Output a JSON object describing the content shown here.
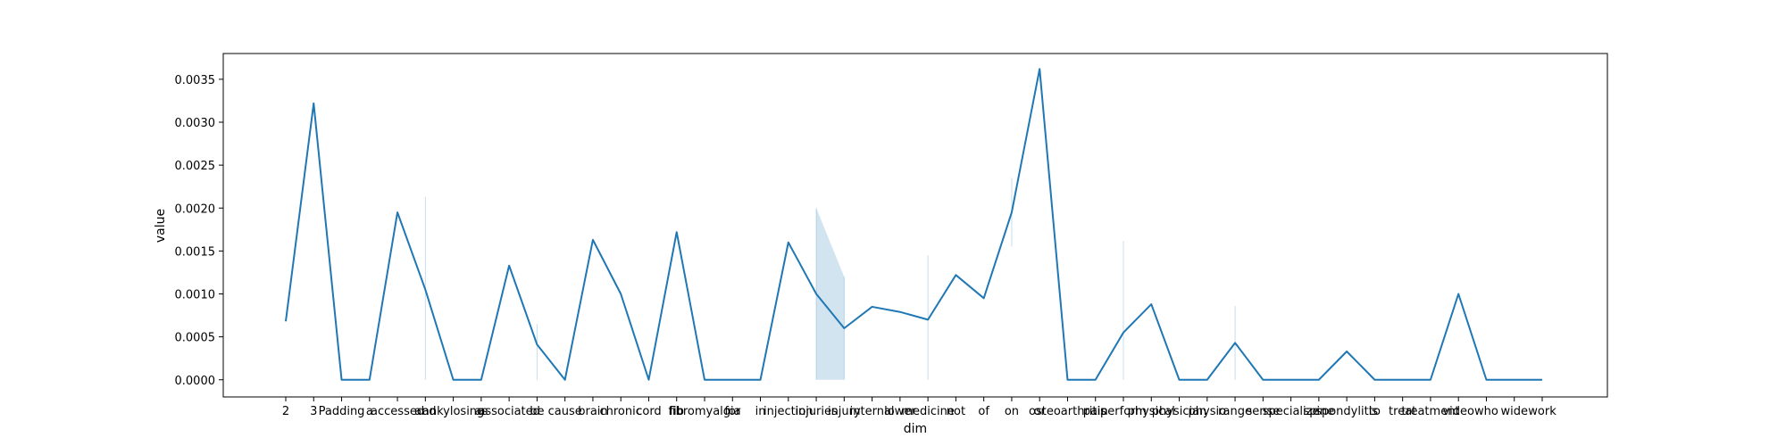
{
  "chart_data": {
    "type": "line",
    "title": "",
    "xlabel": "dim",
    "ylabel": "value",
    "ylim": [
      -0.0002,
      0.0038
    ],
    "yticks": [
      0.0,
      0.0005,
      0.001,
      0.0015,
      0.002,
      0.0025,
      0.003,
      0.0035
    ],
    "ytick_labels": [
      "0.0000",
      "0.0005",
      "0.0010",
      "0.0015",
      "0.0020",
      "0.0025",
      "0.0030",
      "0.0035"
    ],
    "grid": false,
    "legend": "none",
    "line_color": "#1f77b4",
    "band_color": "#1f77b4",
    "categories": [
      "2",
      "3",
      "Padding",
      "a",
      "accessed",
      "and",
      "ankylosing",
      "as",
      "associated",
      "be",
      "cause",
      "brain",
      "chronic",
      "cord",
      "fib",
      "fibromyalgia",
      "for",
      "in",
      "injection",
      "injuries",
      "injury",
      "internal",
      "lower",
      "medicine",
      "not",
      "of",
      "on",
      "or",
      "osteoarthritis",
      "pain",
      "perform",
      "physical",
      "physician",
      "physio",
      "range",
      "sense",
      "specialize",
      "spine",
      "spondylitis",
      "to",
      "treat",
      "treatment",
      "video",
      "who",
      "wide",
      "work"
    ],
    "values": [
      0.00068,
      0.00322,
      0.0,
      0.0,
      0.00195,
      0.00105,
      0.0,
      0.0,
      0.00133,
      0.00041,
      0.0,
      0.00163,
      0.001,
      0.0,
      0.00172,
      0.0,
      0.0,
      0.0,
      0.0016,
      0.001,
      0.0006,
      0.00085,
      0.00079,
      0.0007,
      0.00122,
      0.00095,
      0.00195,
      0.00362,
      0.0,
      0.0,
      0.00055,
      0.00088,
      0.0,
      0.0,
      0.00043,
      0.0,
      0.0,
      0.0,
      0.00033,
      0.0,
      0.0,
      0.0,
      0.001,
      0.0,
      0.0,
      0.0
    ],
    "ci_lower": [
      0.00068,
      0.00322,
      0.0,
      0.0,
      0.00195,
      0.0,
      0.0,
      0.0,
      0.00133,
      0.0,
      0.0,
      0.00163,
      0.001,
      0.0,
      0.00172,
      0.0,
      0.0,
      0.0,
      0.0016,
      0.0,
      0.0,
      0.00085,
      0.00079,
      0.0,
      0.00122,
      0.00095,
      0.00155,
      0.00362,
      0.0,
      0.0,
      0.0,
      0.00088,
      0.0,
      0.0,
      0.0,
      0.0,
      0.0,
      0.0,
      0.00033,
      0.0,
      0.0,
      0.0,
      0.001,
      0.0,
      0.0,
      0.0
    ],
    "ci_upper": [
      0.00068,
      0.00322,
      0.0,
      0.0,
      0.00195,
      0.00213,
      0.0,
      0.0,
      0.00133,
      0.00065,
      0.0,
      0.00163,
      0.001,
      0.0,
      0.00172,
      0.0,
      0.0,
      0.0,
      0.0016,
      0.002,
      0.0012,
      0.00085,
      0.00079,
      0.00145,
      0.00122,
      0.00095,
      0.00235,
      0.00362,
      0.0,
      0.0,
      0.00162,
      0.00088,
      0.0,
      0.0,
      0.00086,
      0.0,
      0.0,
      0.0,
      0.00033,
      0.0,
      0.0,
      0.0,
      0.001,
      0.0,
      0.0,
      0.0
    ]
  }
}
